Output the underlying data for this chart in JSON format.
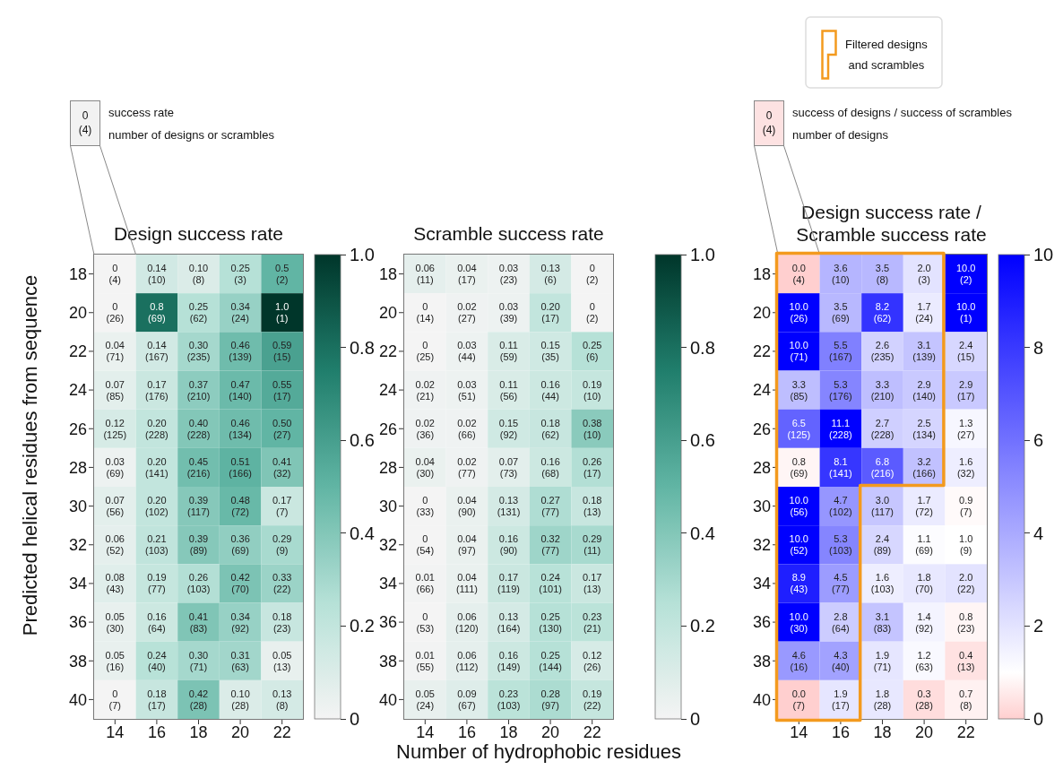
{
  "chart_data": [
    {
      "type": "heatmap",
      "title": "Design success rate",
      "ylabel": "Predicted helical residues from sequence",
      "categories": [
        "14",
        "16",
        "18",
        "20",
        "22"
      ],
      "y_categories": [
        "18",
        "20",
        "22",
        "24",
        "26",
        "28",
        "30",
        "32",
        "34",
        "36",
        "38",
        "40"
      ],
      "cells": [
        [
          0,
          0.14,
          0.1,
          0.25,
          0.5
        ],
        [
          0,
          0.8,
          0.25,
          0.34,
          1.0
        ],
        [
          0.04,
          0.14,
          0.3,
          0.46,
          0.59
        ],
        [
          0.07,
          0.17,
          0.37,
          0.47,
          0.55
        ],
        [
          0.12,
          0.2,
          0.4,
          0.46,
          0.5
        ],
        [
          0.03,
          0.2,
          0.45,
          0.51,
          0.41
        ],
        [
          0.07,
          0.2,
          0.39,
          0.48,
          0.17
        ],
        [
          0.06,
          0.21,
          0.39,
          0.36,
          0.29
        ],
        [
          0.08,
          0.19,
          0.26,
          0.42,
          0.33
        ],
        [
          0.05,
          0.16,
          0.41,
          0.34,
          0.18
        ],
        [
          0.05,
          0.24,
          0.3,
          0.31,
          0.05
        ],
        [
          0,
          0.18,
          0.42,
          0.1,
          0.13
        ]
      ],
      "cell_labels": [
        [
          "0\n(4)",
          "0.14\n(10)",
          "0.10\n(8)",
          "0.25\n(3)",
          "0.5\n(2)"
        ],
        [
          "0\n(26)",
          "0.8\n(69)",
          "0.25\n(62)",
          "0.34\n(24)",
          "1.0\n(1)"
        ],
        [
          "0.04\n(71)",
          "0.14\n(167)",
          "0.30\n(235)",
          "0.46\n(139)",
          "0.59\n(15)"
        ],
        [
          "0.07\n(85)",
          "0.17\n(176)",
          "0.37\n(210)",
          "0.47\n(140)",
          "0.55\n(17)"
        ],
        [
          "0.12\n(125)",
          "0.20\n(228)",
          "0.40\n(228)",
          "0.46\n(134)",
          "0.50\n(27)"
        ],
        [
          "0.03\n(69)",
          "0.20\n(141)",
          "0.45\n(216)",
          "0.51\n(166)",
          "0.41\n(32)"
        ],
        [
          "0.07\n(56)",
          "0.20\n(102)",
          "0.39\n(117)",
          "0.48\n(72)",
          "0.17\n(7)"
        ],
        [
          "0.06\n(52)",
          "0.21\n(103)",
          "0.39\n(89)",
          "0.36\n(69)",
          "0.29\n(9)"
        ],
        [
          "0.08\n(43)",
          "0.19\n(77)",
          "0.26\n(103)",
          "0.42\n(70)",
          "0.33\n(22)"
        ],
        [
          "0.05\n(30)",
          "0.16\n(64)",
          "0.41\n(83)",
          "0.34\n(92)",
          "0.18\n(23)"
        ],
        [
          "0.05\n(16)",
          "0.24\n(40)",
          "0.30\n(71)",
          "0.31\n(63)",
          "0.05\n(13)"
        ],
        [
          "0\n(7)",
          "0.18\n(17)",
          "0.42\n(28)",
          "0.10\n(28)",
          "0.13\n(8)"
        ]
      ],
      "clim": [
        0,
        1
      ],
      "cticks": [
        0,
        0.2,
        0.4,
        0.6,
        0.8,
        {
          "value": 1,
          "label": "1.0"
        }
      ],
      "annotations": [
        "0\n(4)",
        "success rate",
        "number of designs or scrambles"
      ]
    },
    {
      "type": "heatmap",
      "title": "Scramble success rate",
      "xlabel": "Number of hydrophobic residues",
      "categories": [
        "14",
        "16",
        "18",
        "20",
        "22"
      ],
      "y_categories": [
        "18",
        "20",
        "22",
        "24",
        "26",
        "28",
        "30",
        "32",
        "34",
        "36",
        "38",
        "40"
      ],
      "cells": [
        [
          0.06,
          0.04,
          0.03,
          0.13,
          0
        ],
        [
          0,
          0.02,
          0.03,
          0.2,
          0
        ],
        [
          0,
          0.03,
          0.11,
          0.15,
          0.25
        ],
        [
          0.02,
          0.03,
          0.11,
          0.16,
          0.19
        ],
        [
          0.02,
          0.02,
          0.15,
          0.18,
          0.38
        ],
        [
          0.04,
          0.02,
          0.07,
          0.16,
          0.26
        ],
        [
          0,
          0.04,
          0.13,
          0.27,
          0.18
        ],
        [
          0,
          0.04,
          0.16,
          0.32,
          0.29
        ],
        [
          0.01,
          0.04,
          0.17,
          0.24,
          0.17
        ],
        [
          0,
          0.06,
          0.13,
          0.25,
          0.23
        ],
        [
          0.01,
          0.06,
          0.16,
          0.25,
          0.12
        ],
        [
          0.05,
          0.09,
          0.23,
          0.28,
          0.19
        ]
      ],
      "cell_labels": [
        [
          "0.06\n(11)",
          "0.04\n(17)",
          "0.03\n(23)",
          "0.13\n(6)",
          "0\n(2)"
        ],
        [
          "0\n(14)",
          "0.02\n(27)",
          "0.03\n(39)",
          "0.20\n(17)",
          "0\n(2)"
        ],
        [
          "0\n(25)",
          "0.03\n(44)",
          "0.11\n(59)",
          "0.15\n(35)",
          "0.25\n(6)"
        ],
        [
          "0.02\n(21)",
          "0.03\n(51)",
          "0.11\n(56)",
          "0.16\n(44)",
          "0.19\n(10)"
        ],
        [
          "0.02\n(36)",
          "0.02\n(66)",
          "0.15\n(92)",
          "0.18\n(62)",
          "0.38\n(10)"
        ],
        [
          "0.04\n(30)",
          "0.02\n(77)",
          "0.07\n(73)",
          "0.16\n(68)",
          "0.26\n(17)"
        ],
        [
          "0\n(33)",
          "0.04\n(90)",
          "0.13\n(131)",
          "0.27\n(77)",
          "0.18\n(13)"
        ],
        [
          "0\n(54)",
          "0.04\n(97)",
          "0.16\n(90)",
          "0.32\n(77)",
          "0.29\n(11)"
        ],
        [
          "0.01\n(66)",
          "0.04\n(111)",
          "0.17\n(119)",
          "0.24\n(101)",
          "0.17\n(13)"
        ],
        [
          "0\n(53)",
          "0.06\n(120)",
          "0.13\n(164)",
          "0.25\n(130)",
          "0.23\n(21)"
        ],
        [
          "0.01\n(55)",
          "0.06\n(112)",
          "0.16\n(149)",
          "0.25\n(144)",
          "0.12\n(26)"
        ],
        [
          "0.05\n(24)",
          "0.09\n(67)",
          "0.23\n(103)",
          "0.28\n(97)",
          "0.19\n(22)"
        ]
      ],
      "clim": [
        0,
        1
      ],
      "cticks": [
        0,
        0.2,
        0.4,
        0.6,
        0.8,
        {
          "value": 1,
          "label": "1.0"
        }
      ]
    },
    {
      "type": "heatmap",
      "title": "Design success rate /\nScramble success rate",
      "categories": [
        "14",
        "16",
        "18",
        "20",
        "22"
      ],
      "y_categories": [
        "18",
        "20",
        "22",
        "24",
        "26",
        "28",
        "30",
        "32",
        "34",
        "36",
        "38",
        "40"
      ],
      "cells": [
        [
          0,
          3.6,
          3.5,
          2.0,
          10.0
        ],
        [
          10.0,
          3.5,
          8.2,
          1.7,
          10.0
        ],
        [
          10.0,
          5.5,
          2.6,
          3.1,
          2.4
        ],
        [
          3.3,
          5.3,
          3.3,
          2.9,
          2.9
        ],
        [
          6.5,
          11.1,
          2.7,
          2.5,
          1.3
        ],
        [
          0.8,
          8.1,
          6.8,
          3.2,
          1.6
        ],
        [
          10.0,
          4.7,
          3.0,
          1.7,
          0.9
        ],
        [
          10.0,
          5.3,
          2.4,
          1.1,
          1.0
        ],
        [
          8.9,
          4.5,
          1.6,
          1.8,
          2.0
        ],
        [
          10.0,
          2.8,
          3.1,
          1.4,
          0.8
        ],
        [
          4.6,
          4.3,
          1.9,
          1.2,
          0.4
        ],
        [
          0,
          1.9,
          1.8,
          0.3,
          0.7
        ]
      ],
      "cell_labels": [
        [
          "0.0\n(4)",
          "3.6\n(10)",
          "3.5\n(8)",
          "2.0\n(3)",
          "10.0\n(2)"
        ],
        [
          "10.0\n(26)",
          "3.5\n(69)",
          "8.2\n(62)",
          "1.7\n(24)",
          "10.0\n(1)"
        ],
        [
          "10.0\n(71)",
          "5.5\n(167)",
          "2.6\n(235)",
          "3.1\n(139)",
          "2.4\n(15)"
        ],
        [
          "3.3\n(85)",
          "5.3\n(176)",
          "3.3\n(210)",
          "2.9\n(140)",
          "2.9\n(17)"
        ],
        [
          "6.5\n(125)",
          "11.1\n(228)",
          "2.7\n(228)",
          "2.5\n(134)",
          "1.3\n(27)"
        ],
        [
          "0.8\n(69)",
          "8.1\n(141)",
          "6.8\n(216)",
          "3.2\n(166)",
          "1.6\n(32)"
        ],
        [
          "10.0\n(56)",
          "4.7\n(102)",
          "3.0\n(117)",
          "1.7\n(72)",
          "0.9\n(7)"
        ],
        [
          "10.0\n(52)",
          "5.3\n(103)",
          "2.4\n(89)",
          "1.1\n(69)",
          "1.0\n(9)"
        ],
        [
          "8.9\n(43)",
          "4.5\n(77)",
          "1.6\n(103)",
          "1.8\n(70)",
          "2.0\n(22)"
        ],
        [
          "10.0\n(30)",
          "2.8\n(64)",
          "3.1\n(83)",
          "1.4\n(92)",
          "0.8\n(23)"
        ],
        [
          "4.6\n(16)",
          "4.3\n(40)",
          "1.9\n(71)",
          "1.2\n(63)",
          "0.4\n(13)"
        ],
        [
          "0.0\n(7)",
          "1.9\n(17)",
          "1.8\n(28)",
          "0.3\n(28)",
          "0.7\n(8)"
        ]
      ],
      "clim": [
        0,
        10
      ],
      "cticks": [
        0,
        2,
        4,
        6,
        8,
        10
      ],
      "annotations": [
        "0\n(4)",
        "success of designs / success of scrambles",
        "number of designs",
        "Filtered designs\nand scrambles"
      ]
    }
  ]
}
